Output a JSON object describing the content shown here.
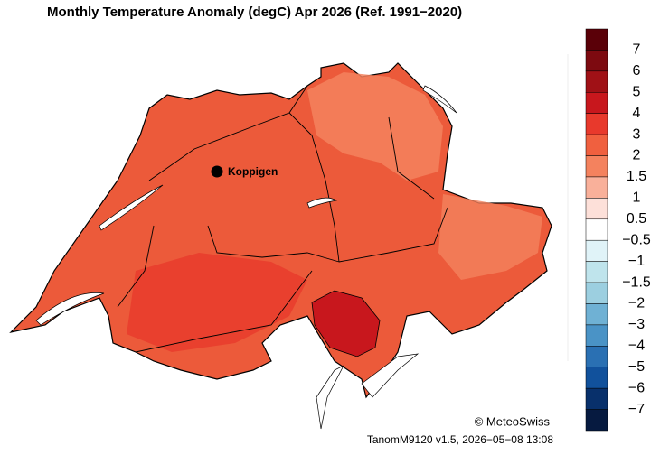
{
  "title": "Monthly Temperature Anomaly (degC) Apr 2026  (Ref. 1991−2020)",
  "location": {
    "label": "Koppigen"
  },
  "legend": {
    "labels": [
      "7",
      "6",
      "5",
      "4",
      "3",
      "2",
      "1.5",
      "1",
      "0.5",
      "−0.5",
      "−1",
      "−1.5",
      "−2",
      "−3",
      "−4",
      "−5",
      "−6",
      "−7"
    ],
    "colors": [
      "#5a0008",
      "#7d0a10",
      "#a01116",
      "#c8171d",
      "#e8392c",
      "#f0603f",
      "#f4825e",
      "#f9b09a",
      "#fde0d9",
      "#ffffff",
      "#e0f3f8",
      "#bfe4ec",
      "#9ccfe0",
      "#6fb1d4",
      "#4a93c6",
      "#2a70b3",
      "#11519c",
      "#08306b",
      "#061a40"
    ]
  },
  "copyright": "© MeteoSwiss",
  "footer": "TanomM9120 v1.5, 2026−05−08 13:08"
}
